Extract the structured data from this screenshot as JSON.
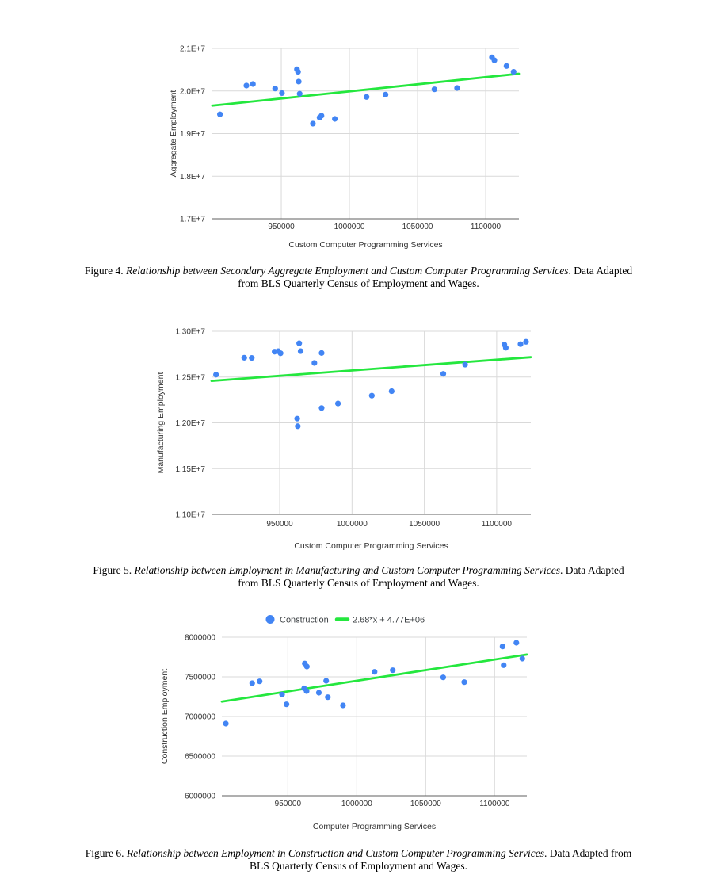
{
  "page": {
    "background": "#ffffff"
  },
  "colors": {
    "point": "#4285f4",
    "trend": "#24e73e",
    "grid": "#d9d9d9",
    "axis_line": "#5f5f5f",
    "tick_text": "#333333",
    "axis_title_text": "#333333",
    "legend_text": "#3c4043",
    "caption_text": "#000000"
  },
  "figures": [
    {
      "caption": {
        "line1_prefix": "Figure 4. ",
        "line1_italic": "Relationship between Secondary Aggregate Employment and Custom Computer Programming Services",
        "line1_rest": ". Data Adapted",
        "line2": "from BLS Quarterly Census of Employment and Wages."
      }
    },
    {
      "caption": {
        "line1_prefix": "Figure 5. ",
        "line1_italic": "Relationship between Employment in Manufacturing and Custom Computer Programming Services",
        "line1_rest": ". Data Adapted",
        "line2": "from BLS Quarterly Census of Employment and Wages."
      }
    },
    {
      "caption": {
        "line1_prefix": "Figure 6. ",
        "line1_italic": "Relationship between Employment in Construction and Custom Computer Programming Services",
        "line1_rest": ". Data Adapted from",
        "line2": "BLS Quarterly Census of Employment and Wages."
      }
    }
  ],
  "chart_data": [
    {
      "type": "scatter",
      "title": "",
      "xlabel": "Custom Computer Programming Services",
      "ylabel": "Aggregate Employment",
      "xlim": [
        899400,
        1124400
      ],
      "ylim": [
        17000000,
        21000000
      ],
      "xticks": [
        950000,
        1000000,
        1050000,
        1100000
      ],
      "xtick_labels": [
        "950000",
        "1000000",
        "1050000",
        "1100000"
      ],
      "yticks": [
        17000000,
        18000000,
        19000000,
        20000000,
        21000000
      ],
      "ytick_labels": [
        "1.7E+7",
        "1.8E+7",
        "1.9E+7",
        "2.0E+7",
        "2.1E+7"
      ],
      "grid": true,
      "legend": null,
      "points": [
        [
          905000,
          19452000
        ],
        [
          924400,
          20126000
        ],
        [
          929200,
          20163000
        ],
        [
          945500,
          20057000
        ],
        [
          950500,
          19950000
        ],
        [
          961500,
          20510000
        ],
        [
          962300,
          20450000
        ],
        [
          962800,
          20220000
        ],
        [
          963500,
          19935000
        ],
        [
          973200,
          19233000
        ],
        [
          978100,
          19376000
        ],
        [
          979500,
          19419000
        ],
        [
          989300,
          19344000
        ],
        [
          1012600,
          19860000
        ],
        [
          1026500,
          19915000
        ],
        [
          1062400,
          20038000
        ],
        [
          1079000,
          20070000
        ],
        [
          1104600,
          20790000
        ],
        [
          1106400,
          20720000
        ],
        [
          1115300,
          20585000
        ],
        [
          1120500,
          20450000
        ]
      ],
      "trendline": {
        "x1": 899400,
        "y1": 19655000,
        "x2": 1124400,
        "y2": 20405000
      }
    },
    {
      "type": "scatter",
      "title": "",
      "xlabel": "Custom Computer Programming Services",
      "ylabel": "Manufacturing Employment",
      "xlim": [
        902900,
        1123600
      ],
      "ylim": [
        11000000,
        13000000
      ],
      "xticks": [
        950000,
        1000000,
        1050000,
        1100000
      ],
      "xtick_labels": [
        "950000",
        "1000000",
        "1050000",
        "1100000"
      ],
      "yticks": [
        11000000,
        11500000,
        12000000,
        12500000,
        13000000
      ],
      "ytick_labels": [
        "1.10E+7",
        "1.15E+7",
        "1.20E+7",
        "1.25E+7",
        "1.30E+7"
      ],
      "grid": true,
      "legend": null,
      "points": [
        [
          906000,
          12526000
        ],
        [
          925500,
          12711000
        ],
        [
          930700,
          12709000
        ],
        [
          946500,
          12777000
        ],
        [
          949000,
          12783000
        ],
        [
          950600,
          12760000
        ],
        [
          963500,
          12869000
        ],
        [
          964500,
          12783000
        ],
        [
          962100,
          12046000
        ],
        [
          962500,
          11963000
        ],
        [
          974000,
          12654000
        ],
        [
          979000,
          12763000
        ],
        [
          979000,
          12162000
        ],
        [
          990300,
          12211000
        ],
        [
          1013700,
          12297000
        ],
        [
          1027400,
          12346000
        ],
        [
          1063100,
          12535000
        ],
        [
          1078200,
          12636000
        ],
        [
          1105300,
          12855000
        ],
        [
          1106300,
          12820000
        ],
        [
          1116500,
          12860000
        ],
        [
          1120300,
          12885000
        ]
      ],
      "trendline": {
        "x1": 902900,
        "y1": 12458000,
        "x2": 1123600,
        "y2": 12717000
      }
    },
    {
      "type": "scatter",
      "title": "",
      "xlabel": "Computer Programming Services",
      "ylabel": "Construction Employment",
      "xlim": [
        902100,
        1123400
      ],
      "ylim": [
        6000000,
        8000000
      ],
      "xticks": [
        950000,
        1000000,
        1050000,
        1100000
      ],
      "xtick_labels": [
        "950000",
        "1000000",
        "1050000",
        "1100000"
      ],
      "yticks": [
        6000000,
        6500000,
        7000000,
        7500000,
        8000000
      ],
      "ytick_labels": [
        "6000000",
        "6500000",
        "7000000",
        "7500000",
        "8000000"
      ],
      "grid": true,
      "legend": {
        "position": "top",
        "entries": [
          {
            "type": "point",
            "label": "Construction"
          },
          {
            "type": "line",
            "label": "2.68*x + 4.77E+06"
          }
        ]
      },
      "points": [
        [
          905000,
          6910000
        ],
        [
          924100,
          7420000
        ],
        [
          929500,
          7443000
        ],
        [
          945800,
          7277000
        ],
        [
          949000,
          7153000
        ],
        [
          962300,
          7668000
        ],
        [
          963800,
          7630000
        ],
        [
          961800,
          7355000
        ],
        [
          963600,
          7320000
        ],
        [
          972500,
          7300000
        ],
        [
          977800,
          7450000
        ],
        [
          979000,
          7243000
        ],
        [
          990000,
          7140000
        ],
        [
          1012900,
          7563000
        ],
        [
          1026100,
          7583000
        ],
        [
          1062700,
          7493000
        ],
        [
          1078000,
          7433000
        ],
        [
          1105800,
          7883000
        ],
        [
          1115800,
          7930000
        ],
        [
          1106600,
          7647000
        ],
        [
          1120100,
          7730000
        ]
      ],
      "trendline": {
        "x1": 902100,
        "y1": 7188000,
        "x2": 1123400,
        "y2": 7781000,
        "formula": "2.68*x + 4.77E+06"
      }
    }
  ]
}
